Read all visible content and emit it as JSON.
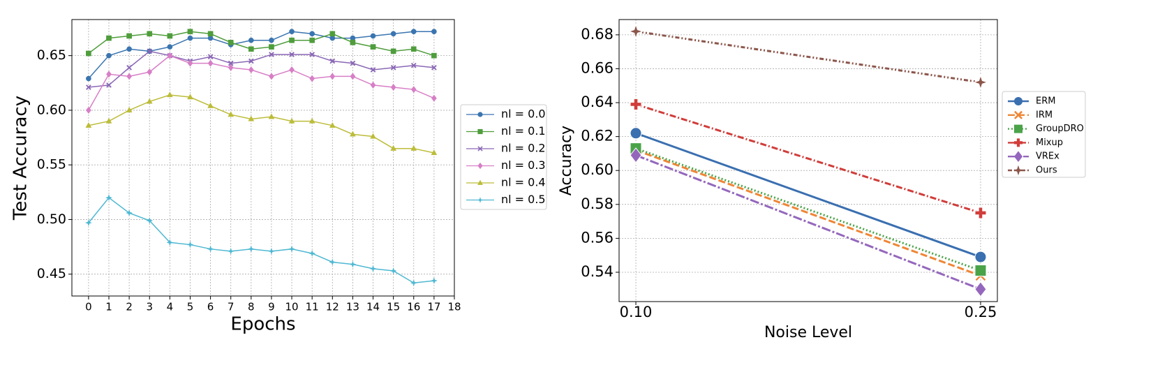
{
  "chart_data": [
    {
      "type": "line",
      "xlabel": "Epochs",
      "ylabel": "Test Accuracy",
      "x": [
        0,
        1,
        2,
        3,
        4,
        5,
        6,
        7,
        8,
        9,
        10,
        11,
        12,
        13,
        14,
        15,
        16,
        17
      ],
      "xlim": [
        -0.82,
        18
      ],
      "xticks": [
        0,
        1,
        2,
        3,
        4,
        5,
        6,
        7,
        8,
        9,
        10,
        11,
        12,
        13,
        14,
        15,
        16,
        17,
        18
      ],
      "ylim": [
        0.43,
        0.683
      ],
      "yticks": [
        0.45,
        {
          "value": 0.5,
          "label": "0.50"
        },
        0.55,
        {
          "value": 0.6,
          "label": "0.60"
        },
        0.65
      ],
      "grid": true,
      "legend": "outside right",
      "series": [
        {
          "name": "nl = 0.0",
          "color": "#3a75b0",
          "marker": "circle",
          "linestyle": "solid",
          "values": [
            0.629,
            0.65,
            0.656,
            0.654,
            0.658,
            0.666,
            0.666,
            0.66,
            0.664,
            0.664,
            0.672,
            0.67,
            0.666,
            0.666,
            0.668,
            0.67,
            0.672,
            0.672
          ]
        },
        {
          "name": "nl = 0.1",
          "color": "#4f9d3c",
          "marker": "square",
          "linestyle": "solid",
          "values": [
            0.652,
            0.666,
            0.668,
            0.67,
            0.668,
            0.672,
            0.67,
            0.662,
            0.656,
            0.658,
            0.664,
            0.664,
            0.67,
            0.662,
            0.658,
            0.654,
            0.656,
            0.65
          ]
        },
        {
          "name": "nl = 0.2",
          "color": "#8a67b5",
          "marker": "x",
          "linestyle": "solid",
          "values": [
            0.621,
            0.623,
            0.639,
            0.654,
            0.65,
            0.645,
            0.649,
            0.643,
            0.645,
            0.651,
            0.651,
            0.651,
            0.645,
            0.643,
            0.637,
            0.639,
            0.641,
            0.639
          ]
        },
        {
          "name": "nl = 0.3",
          "color": "#d77fc6",
          "marker": "diamond",
          "linestyle": "solid",
          "values": [
            0.6,
            0.633,
            0.631,
            0.635,
            0.65,
            0.643,
            0.643,
            0.639,
            0.637,
            0.631,
            0.637,
            0.629,
            0.631,
            0.631,
            0.623,
            0.621,
            0.619,
            0.611
          ]
        },
        {
          "name": "nl = 0.4",
          "color": "#bcbc3a",
          "marker": "triangle",
          "linestyle": "solid",
          "values": [
            0.586,
            0.59,
            0.6,
            0.608,
            0.614,
            0.612,
            0.604,
            0.596,
            0.592,
            0.594,
            0.59,
            0.59,
            0.586,
            0.578,
            0.576,
            0.565,
            0.565,
            0.561
          ]
        },
        {
          "name": "nl = 0.5",
          "color": "#4fb8d2",
          "marker": "star",
          "linestyle": "solid",
          "values": [
            0.497,
            0.52,
            0.506,
            0.499,
            0.479,
            0.477,
            0.473,
            0.471,
            0.473,
            0.471,
            0.473,
            0.469,
            0.461,
            0.459,
            0.455,
            0.453,
            0.442,
            0.444
          ]
        }
      ]
    },
    {
      "type": "line",
      "xlabel": "Noise Level",
      "ylabel": "Accuracy",
      "x": [
        0.1,
        0.25
      ],
      "xlim": [
        0.0927,
        0.2573
      ],
      "xticks": [
        {
          "value": 0.1,
          "label": "0.10"
        },
        0.25
      ],
      "ylim": [
        0.5227,
        0.689
      ],
      "yticks": [
        0.54,
        0.56,
        0.58,
        {
          "value": 0.6,
          "label": "0.60"
        },
        0.62,
        0.64,
        0.66,
        0.68
      ],
      "grid": true,
      "legend": "outside right",
      "series": [
        {
          "name": "ERM",
          "color": "#3a6fb0",
          "marker": "circle",
          "linestyle": "solid",
          "values": [
            0.622,
            0.549
          ]
        },
        {
          "name": "IRM",
          "color": "#ef8636",
          "marker": "x",
          "linestyle": "dashed",
          "values": [
            0.612,
            0.538
          ]
        },
        {
          "name": "GroupDRO",
          "color": "#4aa349",
          "marker": "square",
          "linestyle": "dotted",
          "values": [
            0.613,
            0.541
          ]
        },
        {
          "name": "Mixup",
          "color": "#d03d3a",
          "marker": "plus",
          "linestyle": "dashdot",
          "values": [
            0.639,
            0.575
          ]
        },
        {
          "name": "VREx",
          "color": "#9467bd",
          "marker": "diamond",
          "linestyle": "longdashdot",
          "values": [
            0.609,
            0.53
          ]
        },
        {
          "name": "Ours",
          "color": "#8c564b",
          "marker": "star",
          "linestyle": "dashdotdot",
          "values": [
            0.682,
            0.652
          ]
        }
      ]
    }
  ]
}
